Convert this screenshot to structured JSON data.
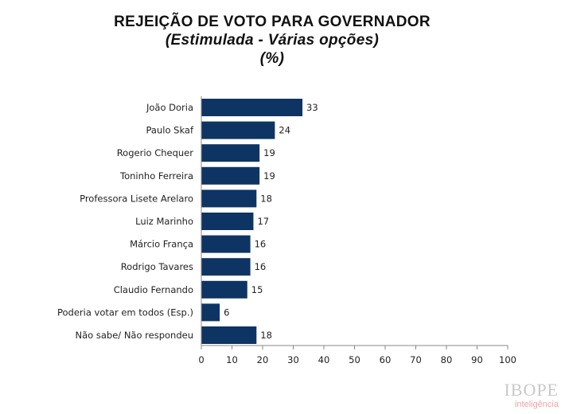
{
  "header": {
    "title": "REJEIÇÃO DE VOTO PARA GOVERNADOR",
    "subtitle": "(Estimulada - Várias opções)",
    "unit": "(%)"
  },
  "chart_data": {
    "type": "bar",
    "orientation": "horizontal",
    "title": "REJEIÇÃO DE VOTO PARA GOVERNADOR",
    "subtitle": "(Estimulada - Várias opções)",
    "categories": [
      "João Doria",
      "Paulo Skaf",
      "Rogerio Chequer",
      "Toninho Ferreira",
      "Professora Lisete Arelaro",
      "Luiz Marinho",
      "Márcio França",
      "Rodrigo Tavares",
      "Claudio Fernando",
      "Poderia votar em todos (Esp.)",
      "Não sabe/ Não respondeu"
    ],
    "values": [
      33,
      24,
      19,
      19,
      18,
      17,
      16,
      16,
      15,
      6,
      18
    ],
    "xlim": [
      0,
      100
    ],
    "xticks": [
      0,
      10,
      20,
      30,
      40,
      50,
      60,
      70,
      80,
      90,
      100
    ],
    "xlabel": "",
    "ylabel": "",
    "grid": false,
    "legend": "none",
    "bar_color": "#0e3463"
  },
  "brand": {
    "name": "IBOPE",
    "sub": "inteligência"
  }
}
